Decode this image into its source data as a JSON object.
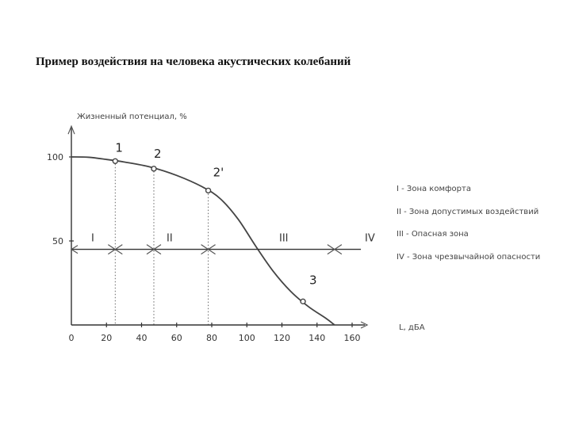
{
  "title": "Пример воздействия на человека акустических колебаний",
  "chart_data": {
    "type": "line",
    "ylabel": "Жизненный потенциал, %",
    "xlabel": "L, дБА",
    "xlim": [
      0,
      165
    ],
    "ylim": [
      0,
      115
    ],
    "x_ticks": [
      "0",
      "20",
      "40",
      "60",
      "80",
      "100",
      "120",
      "140",
      "160"
    ],
    "y_ticks": [
      "100",
      "50"
    ],
    "curve": [
      {
        "x": 0,
        "y": 100
      },
      {
        "x": 10,
        "y": 99.8
      },
      {
        "x": 20,
        "y": 98.5
      },
      {
        "x": 30,
        "y": 97
      },
      {
        "x": 45,
        "y": 94
      },
      {
        "x": 60,
        "y": 89
      },
      {
        "x": 75,
        "y": 82
      },
      {
        "x": 85,
        "y": 75
      },
      {
        "x": 95,
        "y": 63
      },
      {
        "x": 105,
        "y": 47
      },
      {
        "x": 115,
        "y": 32
      },
      {
        "x": 125,
        "y": 20
      },
      {
        "x": 135,
        "y": 11
      },
      {
        "x": 145,
        "y": 4
      },
      {
        "x": 150,
        "y": 0
      }
    ],
    "points": [
      {
        "label": "1",
        "x": 25,
        "y": 97.5
      },
      {
        "label": "2",
        "x": 47,
        "y": 93
      },
      {
        "label": "2'",
        "x": 78,
        "y": 80
      },
      {
        "label": "3",
        "x": 132,
        "y": 14
      }
    ],
    "zones": [
      {
        "label": "I",
        "from": 0,
        "to": 25
      },
      {
        "label": "II",
        "from": 47,
        "to": 78
      },
      {
        "label": "III",
        "from": 100,
        "to": 125
      },
      {
        "label": "IV",
        "from": 150,
        "to": 165
      }
    ],
    "zone_line_y": 45,
    "boundaries": [
      25,
      47,
      78,
      150
    ],
    "legend": [
      "I - Зона комфорта",
      "II - Зона допустимых воздействий",
      "III - Опасная зона",
      "IV - Зона чрезвычайной опасности"
    ]
  }
}
